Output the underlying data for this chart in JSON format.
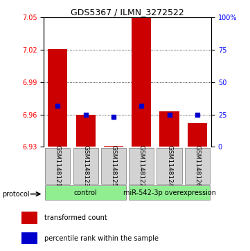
{
  "title": "GDS5367 / ILMN_3272522",
  "samples": [
    "GSM1148121",
    "GSM1148123",
    "GSM1148125",
    "GSM1148122",
    "GSM1148124",
    "GSM1148126"
  ],
  "group_labels": [
    "control",
    "miR-542-3p overexpression"
  ],
  "group_ranges": [
    [
      0,
      3
    ],
    [
      3,
      6
    ]
  ],
  "bar_bottom": 6.93,
  "bar_tops": [
    7.021,
    6.96,
    6.931,
    7.05,
    6.963,
    6.952
  ],
  "blue_values": [
    6.968,
    6.96,
    6.958,
    6.968,
    6.96,
    6.96
  ],
  "ylim": [
    6.93,
    7.05
  ],
  "yticks_left": [
    6.93,
    6.96,
    6.99,
    7.02,
    7.05
  ],
  "yticks_right": [
    0,
    25,
    50,
    75,
    100
  ],
  "bar_color": "#cc0000",
  "blue_color": "#0000cc",
  "legend_red": "transformed count",
  "legend_blue": "percentile rank within the sample",
  "protocol_label": "protocol",
  "bar_width": 0.7,
  "xlim": [
    -0.5,
    5.5
  ],
  "title_fontsize": 9,
  "tick_fontsize": 7,
  "sample_fontsize": 6.5,
  "legend_fontsize": 7,
  "group_fontsize": 7
}
